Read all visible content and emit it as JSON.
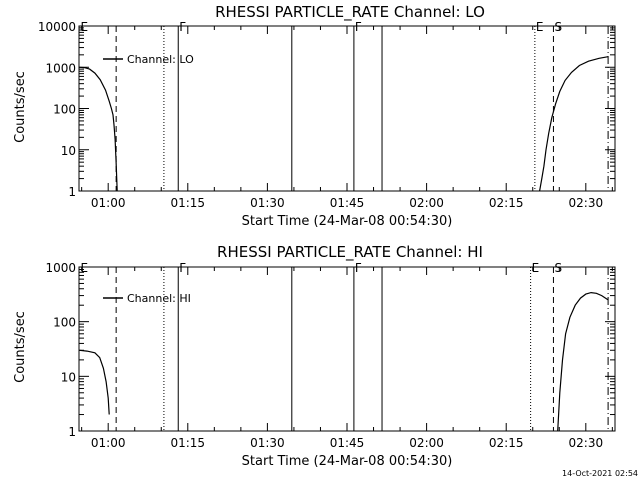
{
  "footer_timestamp": "14-Oct-2021 02:54",
  "chart_data": [
    {
      "type": "line",
      "title": "RHESSI PARTICLE_RATE Channel: LO",
      "xlabel": "Start Time (24-Mar-08 00:54:30)",
      "ylabel": "Counts/sec",
      "yscale": "log",
      "ylim": [
        1,
        10000
      ],
      "yticks": [
        1,
        10,
        100,
        1000,
        10000
      ],
      "ytick_labels": [
        "1",
        "10",
        "100",
        "1000",
        "10000"
      ],
      "xlim_min": [
        54.5,
        155.5
      ],
      "xticks_min": [
        60,
        75,
        90,
        105,
        120,
        135,
        150
      ],
      "xtick_labels": [
        "01:00",
        "01:15",
        "01:30",
        "01:45",
        "02:00",
        "02:15",
        "02:30"
      ],
      "legend": "Channel: LO",
      "flags": [
        {
          "label": "E",
          "t": 54.6,
          "style": "none"
        },
        {
          "label": "",
          "t": 61.5,
          "style": "dashed"
        },
        {
          "label": "",
          "t": 70.5,
          "style": "dotted"
        },
        {
          "label": "F",
          "t": 73.2,
          "style": "solid"
        },
        {
          "label": "",
          "t": 94.6,
          "style": "solid"
        },
        {
          "label": "F",
          "t": 106.3,
          "style": "solid"
        },
        {
          "label": "",
          "t": 111.6,
          "style": "solid"
        },
        {
          "label": "E",
          "t": 140.4,
          "style": "dotted"
        },
        {
          "label": "S",
          "t": 143.9,
          "style": "dashed"
        },
        {
          "label": "",
          "t": 154.2,
          "style": "dashdot"
        }
      ],
      "series": [
        {
          "name": "Channel: LO",
          "segments": [
            [
              [
                54.6,
                1000
              ],
              [
                55.5,
                980
              ],
              [
                56.5,
                900
              ],
              [
                57.5,
                720
              ],
              [
                58.5,
                500
              ],
              [
                59.5,
                280
              ],
              [
                60.2,
                150
              ],
              [
                60.6,
                100
              ],
              [
                60.9,
                70
              ],
              [
                61.1,
                40
              ],
              [
                61.3,
                18
              ],
              [
                61.5,
                5
              ],
              [
                61.7,
                1
              ]
            ],
            [
              [
                141.3,
                1
              ],
              [
                141.7,
                2
              ],
              [
                142.1,
                4
              ],
              [
                142.5,
                10
              ],
              [
                143,
                25
              ],
              [
                143.6,
                60
              ],
              [
                144.3,
                130
              ],
              [
                145.1,
                260
              ],
              [
                146.1,
                480
              ],
              [
                147.3,
                750
              ],
              [
                148.8,
                1100
              ],
              [
                150.5,
                1400
              ],
              [
                152.5,
                1650
              ],
              [
                154.2,
                1800
              ]
            ]
          ]
        }
      ]
    },
    {
      "type": "line",
      "title": "RHESSI PARTICLE_RATE Channel: HI",
      "xlabel": "Start Time (24-Mar-08 00:54:30)",
      "ylabel": "Counts/sec",
      "yscale": "log",
      "ylim": [
        1,
        1000
      ],
      "yticks": [
        1,
        10,
        100,
        1000
      ],
      "ytick_labels": [
        "1",
        "10",
        "100",
        "1000"
      ],
      "xlim_min": [
        54.5,
        155.5
      ],
      "xticks_min": [
        60,
        75,
        90,
        105,
        120,
        135,
        150
      ],
      "xtick_labels": [
        "01:00",
        "01:15",
        "01:30",
        "01:45",
        "02:00",
        "02:15",
        "02:30"
      ],
      "legend": "Channel: HI",
      "flags": [
        {
          "label": "E",
          "t": 54.6,
          "style": "none"
        },
        {
          "label": "",
          "t": 61.5,
          "style": "dashed"
        },
        {
          "label": "",
          "t": 70.5,
          "style": "dotted"
        },
        {
          "label": "F",
          "t": 73.2,
          "style": "solid"
        },
        {
          "label": "",
          "t": 94.6,
          "style": "solid"
        },
        {
          "label": "F",
          "t": 106.3,
          "style": "solid"
        },
        {
          "label": "",
          "t": 111.6,
          "style": "solid"
        },
        {
          "label": "E",
          "t": 139.6,
          "style": "dotted"
        },
        {
          "label": "S",
          "t": 143.9,
          "style": "dashed"
        },
        {
          "label": "",
          "t": 154.2,
          "style": "dashdot"
        }
      ],
      "series": [
        {
          "name": "Channel: HI",
          "segments": [
            [
              [
                54.6,
                30
              ],
              [
                56,
                29
              ],
              [
                57.5,
                27
              ],
              [
                58.4,
                22
              ],
              [
                59.1,
                14
              ],
              [
                59.6,
                8
              ],
              [
                60,
                4
              ],
              [
                60.2,
                2
              ]
            ],
            [
              [
                144.7,
                1
              ],
              [
                145.1,
                5
              ],
              [
                145.6,
                20
              ],
              [
                146.2,
                60
              ],
              [
                147,
                120
              ],
              [
                148,
                200
              ],
              [
                149,
                270
              ],
              [
                150,
                320
              ],
              [
                151,
                340
              ],
              [
                152,
                330
              ],
              [
                153,
                300
              ],
              [
                154.2,
                250
              ]
            ]
          ]
        }
      ]
    }
  ]
}
